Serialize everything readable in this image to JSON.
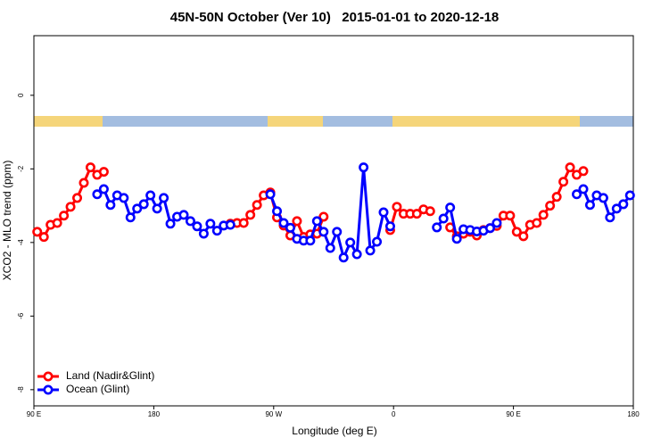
{
  "chart_data": {
    "type": "line",
    "title": "45N-50N October (Ver 10)   2015-01-01 to 2020-12-18",
    "x_label": "Longitude (deg E)",
    "y_label": "XCO2 - MLO trend (ppm)",
    "xlim": [
      90,
      540
    ],
    "ylim": [
      -8.44,
      1.62
    ],
    "xticks": [
      {
        "value": 90,
        "label": "90 E"
      },
      180,
      {
        "value": 270,
        "label": "90 W"
      },
      {
        "value": 360,
        "label": "0"
      },
      {
        "value": 450,
        "label": "90 E"
      },
      {
        "value": 540,
        "label": "180"
      }
    ],
    "yticks": [
      0,
      -2,
      -4,
      -6,
      -8
    ],
    "legend": "bottom-left",
    "series": [
      {
        "name": "Land (Nadir&Glint)",
        "color": "#ff0000",
        "x": [
          92.5,
          97.5,
          102.5,
          107.5,
          112.5,
          117.5,
          122.5,
          127.5,
          132.5,
          137.5,
          142.5,
          147.5,
          237.5,
          242.5,
          247.5,
          252.5,
          257.5,
          262.5,
          267.5,
          272.5,
          277.5,
          282.5,
          287.5,
          292.5,
          297.5,
          302.5,
          307.5,
          312.5,
          357.5,
          362.5,
          367.5,
          372.5,
          377.5,
          382.5,
          387.5,
          392.5,
          402.5,
          407.5,
          412.5,
          417.5,
          422.5,
          427.5,
          432.5,
          437.5,
          442.5,
          447.5,
          452.5,
          457.5,
          462.5,
          467.5,
          472.5,
          477.5,
          482.5,
          487.5,
          492.5,
          497.5,
          502.5
        ],
        "values": [
          -3.71,
          -3.85,
          -3.52,
          -3.47,
          -3.27,
          -3.03,
          -2.79,
          -2.38,
          -1.96,
          -2.16,
          -2.08,
          null,
          -3.49,
          -3.47,
          -3.47,
          -3.25,
          -2.98,
          -2.72,
          -2.64,
          -3.32,
          -3.54,
          -3.81,
          -3.42,
          -3.85,
          -3.78,
          -3.76,
          -3.3,
          null,
          -3.66,
          -3.03,
          -3.22,
          -3.22,
          -3.22,
          -3.1,
          -3.15,
          null,
          -3.59,
          -3.83,
          -3.76,
          -3.71,
          -3.81,
          -3.66,
          -3.61,
          -3.55,
          -3.27,
          -3.27,
          -3.71,
          -3.83,
          -3.52,
          -3.47,
          -3.25,
          -3.0,
          -2.76,
          -2.35,
          -1.96,
          -2.16,
          -2.06
        ]
      },
      {
        "name": "Ocean (Glint)",
        "color": "#0000ff",
        "x": [
          137.5,
          142.5,
          147.5,
          152.5,
          157.5,
          162.5,
          167.5,
          172.5,
          177.5,
          182.5,
          187.5,
          192.5,
          197.5,
          202.5,
          207.5,
          212.5,
          217.5,
          222.5,
          227.5,
          232.5,
          237.5,
          242.5,
          267.5,
          272.5,
          277.5,
          282.5,
          287.5,
          292.5,
          297.5,
          302.5,
          307.5,
          312.5,
          317.5,
          322.5,
          327.5,
          332.5,
          337.5,
          342.5,
          347.5,
          352.5,
          357.5,
          362.5,
          392.5,
          397.5,
          402.5,
          407.5,
          412.5,
          417.5,
          422.5,
          427.5,
          432.5,
          437.5,
          442.5,
          497.5,
          502.5,
          507.5,
          512.5,
          517.5,
          522.5,
          527.5,
          532.5,
          537.5
        ],
        "values": [
          -2.69,
          -2.55,
          -2.98,
          -2.72,
          -2.79,
          -3.32,
          -3.08,
          -2.96,
          -2.72,
          -3.08,
          -2.79,
          -3.49,
          -3.3,
          -3.25,
          -3.42,
          -3.56,
          -3.76,
          -3.49,
          -3.68,
          -3.54,
          -3.52,
          null,
          -2.69,
          -3.15,
          -3.47,
          -3.6,
          -3.9,
          -3.95,
          -3.95,
          -3.42,
          -3.71,
          -4.15,
          -3.71,
          -4.41,
          -4.0,
          -4.32,
          -1.96,
          -4.22,
          -3.98,
          -3.18,
          -3.56,
          null,
          -3.59,
          -3.35,
          -3.05,
          -3.9,
          -3.64,
          -3.66,
          -3.7,
          -3.68,
          -3.61,
          -3.47,
          null,
          -2.69,
          -2.55,
          -2.98,
          -2.72,
          -2.79,
          -3.32,
          -3.08,
          -2.96,
          -2.72
        ]
      }
    ]
  }
}
